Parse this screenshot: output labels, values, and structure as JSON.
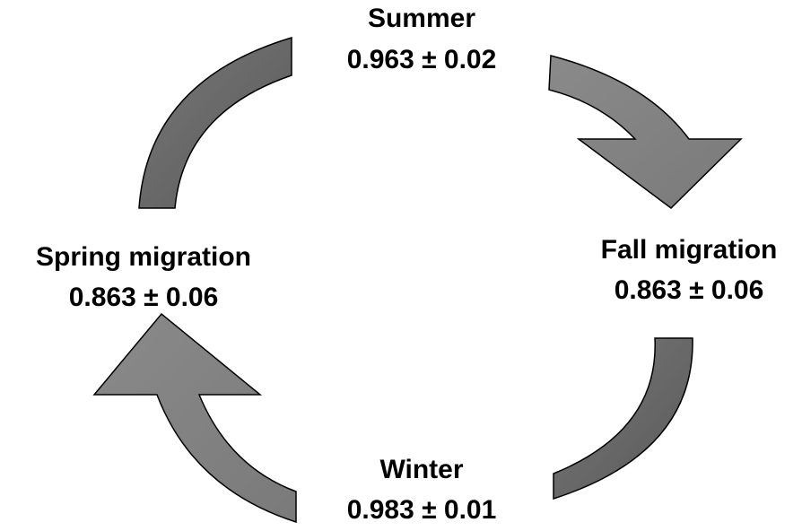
{
  "nodes": [
    {
      "label": "Summer",
      "value": "0.963 ± 0.02"
    },
    {
      "label": "Fall migration",
      "value": "0.863 ± 0.06"
    },
    {
      "label": "Winter",
      "value": "0.983 ± 0.01"
    },
    {
      "label": "Spring migration",
      "value": "0.863 ± 0.06"
    }
  ]
}
